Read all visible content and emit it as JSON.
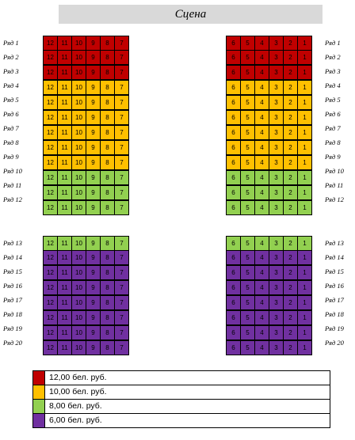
{
  "stage": {
    "label": "Сцена"
  },
  "colors": {
    "red": "#c00000",
    "orange": "#ffc000",
    "green": "#92d050",
    "purple": "#7030a0"
  },
  "rows_top": [
    {
      "label": "Ряд 1",
      "color": "#c00000"
    },
    {
      "label": "Ряд 2",
      "color": "#c00000"
    },
    {
      "label": "Ряд 3",
      "color": "#c00000"
    },
    {
      "label": "Ряд 4",
      "color": "#ffc000"
    },
    {
      "label": "Ряд 5",
      "color": "#ffc000"
    },
    {
      "label": "Ряд 6",
      "color": "#ffc000"
    },
    {
      "label": "Ряд 7",
      "color": "#ffc000"
    },
    {
      "label": "Ряд 8",
      "color": "#ffc000"
    },
    {
      "label": "Ряд 9",
      "color": "#ffc000"
    },
    {
      "label": "Ряд 10",
      "color": "#92d050"
    },
    {
      "label": "Ряд 11",
      "color": "#92d050"
    },
    {
      "label": "Ряд 12",
      "color": "#92d050"
    }
  ],
  "rows_bottom": [
    {
      "label": "Ряд 13",
      "color": "#92d050"
    },
    {
      "label": "Ряд 14",
      "color": "#7030a0"
    },
    {
      "label": "Ряд 15",
      "color": "#7030a0"
    },
    {
      "label": "Ряд 16",
      "color": "#7030a0"
    },
    {
      "label": "Ряд 17",
      "color": "#7030a0"
    },
    {
      "label": "Ряд 18",
      "color": "#7030a0"
    },
    {
      "label": "Ряд 19",
      "color": "#7030a0"
    },
    {
      "label": "Ряд 20",
      "color": "#7030a0"
    }
  ],
  "seats_left": [
    "12",
    "11",
    "10",
    "9",
    "8",
    "7"
  ],
  "seats_right": [
    "6",
    "5",
    "4",
    "3",
    "2",
    "1"
  ],
  "legend": [
    {
      "label": "12,00 бел. руб.",
      "color": "#c00000"
    },
    {
      "label": "10,00 бел. руб.",
      "color": "#ffc000"
    },
    {
      "label": "8,00 бел. руб.",
      "color": "#92d050"
    },
    {
      "label": "6,00 бел. руб.",
      "color": "#7030a0"
    }
  ]
}
